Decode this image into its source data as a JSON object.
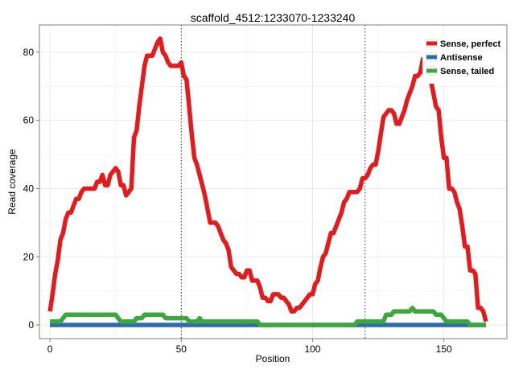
{
  "chart_data": {
    "type": "line",
    "title": "scaffold_4512:1233070-1233240",
    "xlabel": "Position",
    "ylabel": "Read coverage",
    "xlim": [
      -4,
      174
    ],
    "ylim": [
      -4,
      88
    ],
    "x_ticks": [
      0,
      50,
      100,
      150
    ],
    "y_ticks": [
      0,
      20,
      40,
      60,
      80
    ],
    "vlines": [
      50,
      120
    ],
    "grid": true,
    "legend_position": "top-right",
    "series": [
      {
        "name": "Sense, perfect",
        "color": "#e41a1c",
        "points": [
          [
            0,
            4
          ],
          [
            1,
            9
          ],
          [
            2,
            15
          ],
          [
            3,
            19
          ],
          [
            4,
            25
          ],
          [
            5,
            27
          ],
          [
            6,
            31
          ],
          [
            7,
            33
          ],
          [
            8,
            33
          ],
          [
            9,
            35
          ],
          [
            10,
            37
          ],
          [
            11,
            37
          ],
          [
            12,
            39
          ],
          [
            13,
            40
          ],
          [
            14,
            40
          ],
          [
            15,
            40
          ],
          [
            16,
            40
          ],
          [
            17,
            40
          ],
          [
            18,
            42
          ],
          [
            19,
            42
          ],
          [
            20,
            44
          ],
          [
            21,
            41
          ],
          [
            22,
            41
          ],
          [
            23,
            44
          ],
          [
            24,
            45
          ],
          [
            25,
            46
          ],
          [
            26,
            45
          ],
          [
            27,
            41
          ],
          [
            28,
            41
          ],
          [
            29,
            38
          ],
          [
            30,
            39
          ],
          [
            31,
            40
          ],
          [
            32,
            55
          ],
          [
            33,
            57
          ],
          [
            34,
            64
          ],
          [
            35,
            70
          ],
          [
            36,
            76
          ],
          [
            37,
            79
          ],
          [
            38,
            79
          ],
          [
            39,
            79
          ],
          [
            40,
            81
          ],
          [
            41,
            83
          ],
          [
            42,
            84
          ],
          [
            43,
            80
          ],
          [
            44,
            79
          ],
          [
            45,
            77
          ],
          [
            46,
            76
          ],
          [
            47,
            76
          ],
          [
            48,
            76
          ],
          [
            49,
            76
          ],
          [
            50,
            77
          ],
          [
            51,
            73
          ],
          [
            52,
            72
          ],
          [
            53,
            64
          ],
          [
            54,
            56
          ],
          [
            55,
            49
          ],
          [
            56,
            47
          ],
          [
            57,
            44
          ],
          [
            58,
            41
          ],
          [
            59,
            38
          ],
          [
            60,
            34
          ],
          [
            61,
            30
          ],
          [
            62,
            30
          ],
          [
            63,
            30
          ],
          [
            64,
            29
          ],
          [
            65,
            27
          ],
          [
            66,
            25
          ],
          [
            67,
            24
          ],
          [
            68,
            22
          ],
          [
            69,
            17
          ],
          [
            70,
            16
          ],
          [
            71,
            15
          ],
          [
            72,
            15
          ],
          [
            73,
            14
          ],
          [
            74,
            14
          ],
          [
            75,
            16
          ],
          [
            76,
            16
          ],
          [
            77,
            13
          ],
          [
            78,
            13
          ],
          [
            79,
            13
          ],
          [
            80,
            11
          ],
          [
            81,
            8
          ],
          [
            82,
            8
          ],
          [
            83,
            7
          ],
          [
            84,
            7
          ],
          [
            85,
            9
          ],
          [
            86,
            9
          ],
          [
            87,
            9
          ],
          [
            88,
            8
          ],
          [
            89,
            8
          ],
          [
            90,
            7
          ],
          [
            91,
            6
          ],
          [
            92,
            4
          ],
          [
            93,
            4
          ],
          [
            94,
            5
          ],
          [
            95,
            5
          ],
          [
            96,
            6
          ],
          [
            97,
            7
          ],
          [
            98,
            8
          ],
          [
            99,
            9
          ],
          [
            100,
            9
          ],
          [
            101,
            12
          ],
          [
            102,
            13
          ],
          [
            103,
            17
          ],
          [
            104,
            20
          ],
          [
            105,
            21
          ],
          [
            106,
            24
          ],
          [
            107,
            27
          ],
          [
            108,
            27
          ],
          [
            109,
            29
          ],
          [
            110,
            31
          ],
          [
            111,
            33
          ],
          [
            112,
            36
          ],
          [
            113,
            37
          ],
          [
            114,
            39
          ],
          [
            115,
            39
          ],
          [
            116,
            39
          ],
          [
            117,
            39
          ],
          [
            118,
            40
          ],
          [
            119,
            43
          ],
          [
            120,
            43
          ],
          [
            121,
            44
          ],
          [
            122,
            46
          ],
          [
            123,
            47
          ],
          [
            124,
            47
          ],
          [
            125,
            51
          ],
          [
            126,
            56
          ],
          [
            127,
            61
          ],
          [
            128,
            62
          ],
          [
            129,
            63
          ],
          [
            130,
            63
          ],
          [
            131,
            62
          ],
          [
            132,
            59
          ],
          [
            133,
            59
          ],
          [
            134,
            61
          ],
          [
            135,
            63
          ],
          [
            136,
            66
          ],
          [
            137,
            68
          ],
          [
            138,
            70
          ],
          [
            139,
            73
          ],
          [
            140,
            73
          ],
          [
            141,
            74
          ],
          [
            142,
            78
          ],
          [
            143,
            78
          ],
          [
            144,
            73
          ],
          [
            145,
            72
          ],
          [
            146,
            68
          ],
          [
            147,
            64
          ],
          [
            148,
            63
          ],
          [
            149,
            55
          ],
          [
            150,
            49
          ],
          [
            151,
            49
          ],
          [
            152,
            40
          ],
          [
            153,
            40
          ],
          [
            154,
            39
          ],
          [
            155,
            36
          ],
          [
            156,
            34
          ],
          [
            157,
            29
          ],
          [
            158,
            23
          ],
          [
            159,
            23
          ],
          [
            160,
            16
          ],
          [
            161,
            16
          ],
          [
            162,
            15
          ],
          [
            163,
            5
          ],
          [
            164,
            5
          ],
          [
            165,
            4
          ],
          [
            166,
            1
          ]
        ]
      },
      {
        "name": "Antisense",
        "color": "#2b6ab0",
        "points": [
          [
            0,
            0
          ],
          [
            166,
            0
          ]
        ]
      },
      {
        "name": "Sense, tailed",
        "color": "#3aa83a",
        "points": [
          [
            0,
            1
          ],
          [
            4,
            1
          ],
          [
            5,
            2
          ],
          [
            6,
            3
          ],
          [
            25,
            3
          ],
          [
            26,
            2
          ],
          [
            27,
            1
          ],
          [
            32,
            1
          ],
          [
            33,
            2
          ],
          [
            35,
            2
          ],
          [
            36,
            3
          ],
          [
            43,
            3
          ],
          [
            44,
            2
          ],
          [
            52,
            2
          ],
          [
            53,
            1
          ],
          [
            56,
            1
          ],
          [
            57,
            2
          ],
          [
            58,
            1
          ],
          [
            79,
            1
          ],
          [
            80,
            0
          ],
          [
            116,
            0
          ],
          [
            117,
            1
          ],
          [
            127,
            1
          ],
          [
            128,
            3
          ],
          [
            130,
            3
          ],
          [
            131,
            4
          ],
          [
            137,
            4
          ],
          [
            138,
            5
          ],
          [
            139,
            4
          ],
          [
            146,
            4
          ],
          [
            147,
            3
          ],
          [
            149,
            3
          ],
          [
            150,
            2
          ],
          [
            151,
            1
          ],
          [
            159,
            1
          ],
          [
            160,
            0
          ],
          [
            166,
            0
          ]
        ]
      }
    ]
  }
}
